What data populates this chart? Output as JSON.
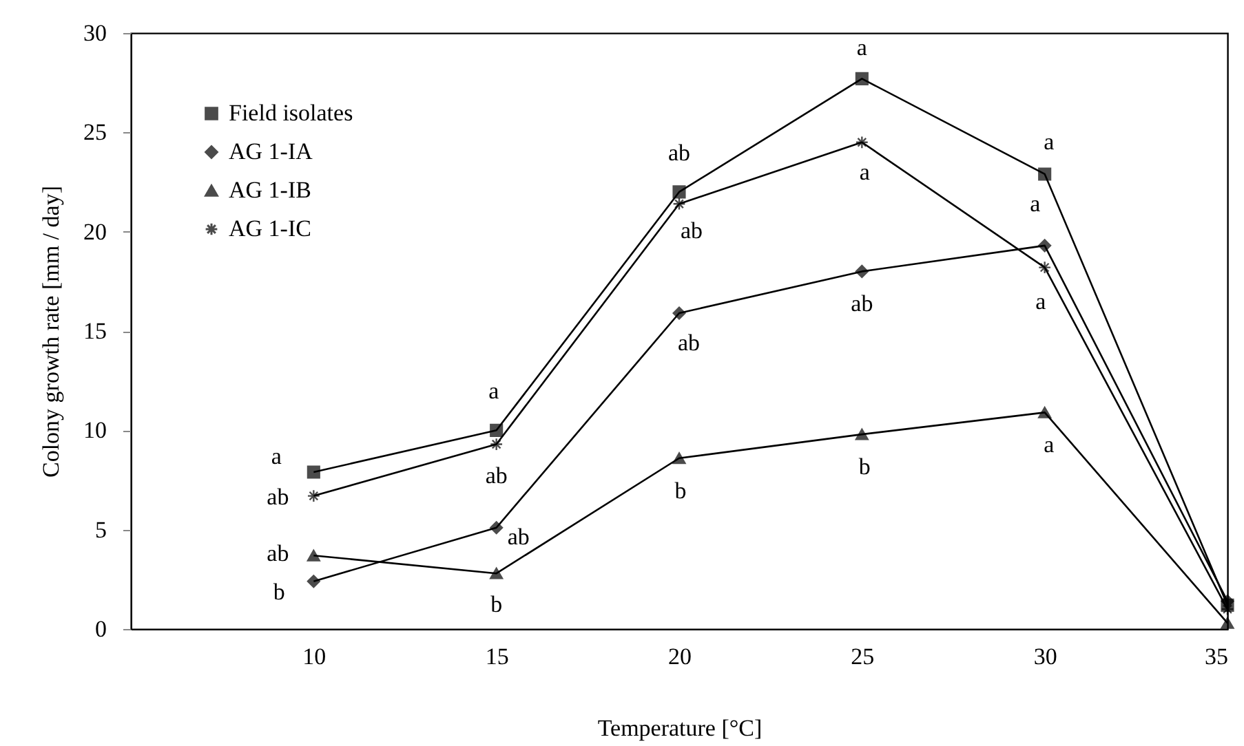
{
  "chart_data": {
    "type": "line",
    "xlabel": "Temperature [°C]",
    "ylabel": "Colony growth rate [mm / day]",
    "x": [
      10,
      15,
      20,
      25,
      30,
      35
    ],
    "xlim": [
      5,
      35
    ],
    "xticks": [
      10,
      15,
      20,
      25,
      30,
      35
    ],
    "ylim": [
      0,
      30
    ],
    "yticks": [
      0,
      5,
      10,
      15,
      20,
      25,
      30
    ],
    "legend": "top left",
    "series": [
      {
        "name": "Field isolates",
        "color": "#000000",
        "marker": "square",
        "values": [
          7.9,
          10.0,
          22.0,
          27.7,
          22.9,
          1.2
        ]
      },
      {
        "name": "AG 1-IA",
        "color": "#000000",
        "marker": "diamond",
        "values": [
          2.4,
          5.1,
          15.9,
          18.0,
          19.3,
          1.4
        ]
      },
      {
        "name": "AG 1-IB",
        "color": "#000000",
        "marker": "triangle",
        "values": [
          3.7,
          2.8,
          8.6,
          9.8,
          10.9,
          0.3
        ]
      },
      {
        "name": "AG 1-IC",
        "color": "#000000",
        "marker": "cross",
        "values": [
          6.7,
          9.3,
          21.4,
          24.5,
          18.2,
          1.0
        ]
      }
    ],
    "annotations": [
      {
        "text": "a",
        "x": 10,
        "y": 7.9
      },
      {
        "text": "a",
        "x": 15,
        "y": 10.0
      },
      {
        "text": "ab",
        "x": 20,
        "y": 22.0
      },
      {
        "text": "a",
        "x": 25,
        "y": 27.7
      },
      {
        "text": "a",
        "x": 30,
        "y": 22.9
      },
      {
        "text": "ab",
        "x": 10,
        "y": 6.7
      },
      {
        "text": "ab",
        "x": 15,
        "y": 9.3
      },
      {
        "text": "ab",
        "x": 20,
        "y": 21.4
      },
      {
        "text": "a",
        "x": 25,
        "y": 24.5
      },
      {
        "text": "a",
        "x": 30,
        "y": 19.3
      },
      {
        "text": "a",
        "x": 30,
        "y": 18.2
      },
      {
        "text": "b",
        "x": 10,
        "y": 2.4
      },
      {
        "text": "ab",
        "x": 15,
        "y": 5.1
      },
      {
        "text": "ab",
        "x": 20,
        "y": 15.9
      },
      {
        "text": "ab",
        "x": 25,
        "y": 18.0
      },
      {
        "text": "ab",
        "x": 10,
        "y": 3.7
      },
      {
        "text": "b",
        "x": 15,
        "y": 2.8
      },
      {
        "text": "b",
        "x": 20,
        "y": 8.6
      },
      {
        "text": "b",
        "x": 25,
        "y": 9.8
      },
      {
        "text": "a",
        "x": 30,
        "y": 10.9
      }
    ]
  }
}
